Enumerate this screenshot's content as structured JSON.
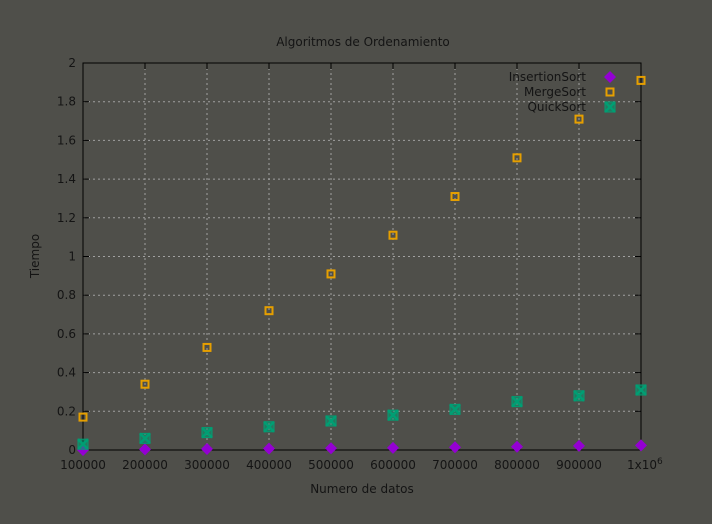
{
  "chart_data": {
    "type": "scatter",
    "title": "Algoritmos de Ordenamiento",
    "xlabel": "Numero de datos",
    "ylabel": "Tiempo",
    "xlim": [
      100000,
      1000000
    ],
    "ylim": [
      0,
      2
    ],
    "grid": true,
    "legend_position": "top-right",
    "x_ticks": [
      "100000",
      "200000",
      "300000",
      "400000",
      "500000",
      "600000",
      "700000",
      "800000",
      "900000",
      "1x10^6"
    ],
    "y_ticks": [
      "0",
      "0.2",
      "0.4",
      "0.6",
      "0.8",
      "1",
      "1.2",
      "1.4",
      "1.6",
      "1.8",
      "2"
    ],
    "x": [
      100000,
      200000,
      300000,
      400000,
      500000,
      600000,
      700000,
      800000,
      900000,
      1000000
    ],
    "series": [
      {
        "name": "InsertionSort",
        "marker": "diamond",
        "color": "#9400d3",
        "values": [
          0.0,
          0.003,
          0.005,
          0.007,
          0.009,
          0.011,
          0.014,
          0.017,
          0.021,
          0.024
        ]
      },
      {
        "name": "MergeSort",
        "marker": "square",
        "color": "#e69f00",
        "values": [
          0.17,
          0.34,
          0.53,
          0.72,
          0.91,
          1.11,
          1.31,
          1.51,
          1.71,
          1.91
        ]
      },
      {
        "name": "QuickSort",
        "marker": "x-square",
        "color": "#009e73",
        "values": [
          0.03,
          0.06,
          0.09,
          0.12,
          0.15,
          0.18,
          0.21,
          0.25,
          0.28,
          0.31
        ]
      }
    ]
  }
}
